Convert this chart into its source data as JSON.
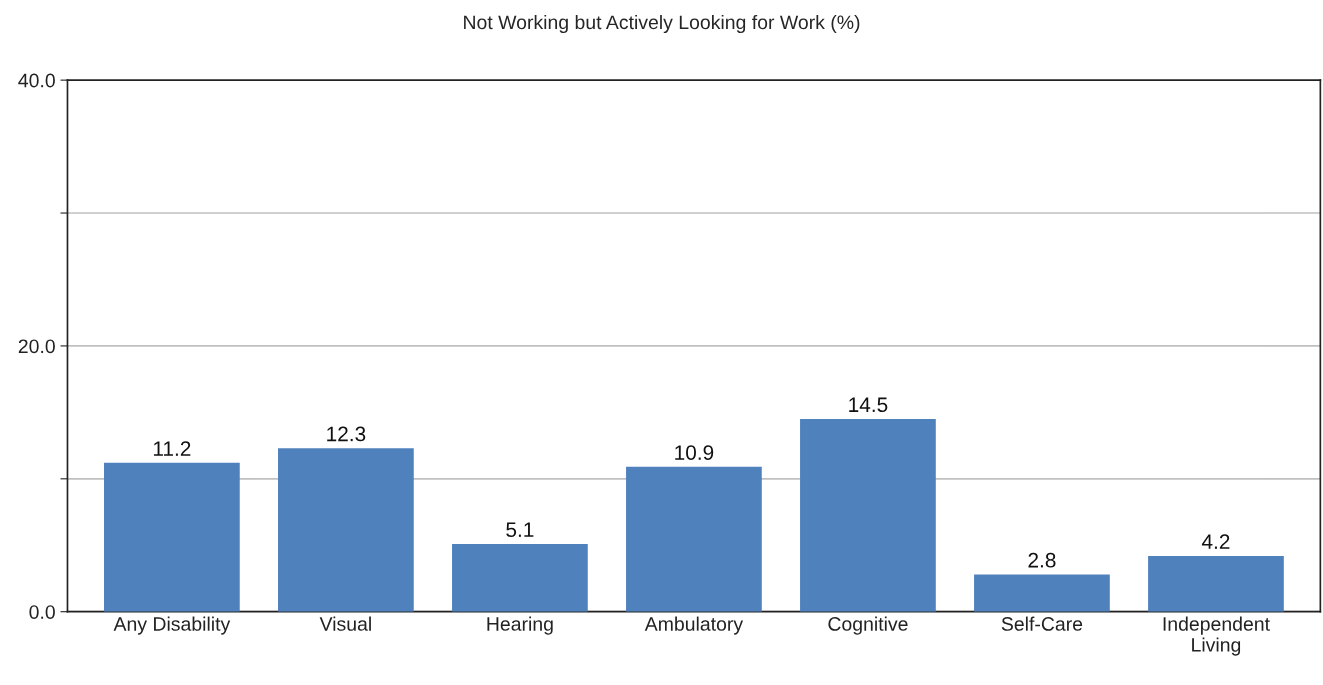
{
  "chart_data": {
    "type": "bar",
    "title": "Not Working but Actively Looking for Work (%)",
    "categories": [
      "Any Disability",
      "Visual",
      "Hearing",
      "Ambulatory",
      "Cognitive",
      "Self-Care",
      "Independent\nLiving"
    ],
    "values": [
      11.2,
      12.3,
      5.1,
      10.9,
      14.5,
      2.8,
      4.2
    ],
    "color": "#4f81bd",
    "ylim": [
      0,
      40
    ],
    "yticks": [
      {
        "value": 0,
        "label": "0.0"
      },
      {
        "value": 10,
        "label": null
      },
      {
        "value": 20,
        "label": "20.0"
      },
      {
        "value": 30,
        "label": null
      },
      {
        "value": 40,
        "label": "40.0"
      }
    ],
    "data_labels": true,
    "grid": "y",
    "legend": false
  }
}
